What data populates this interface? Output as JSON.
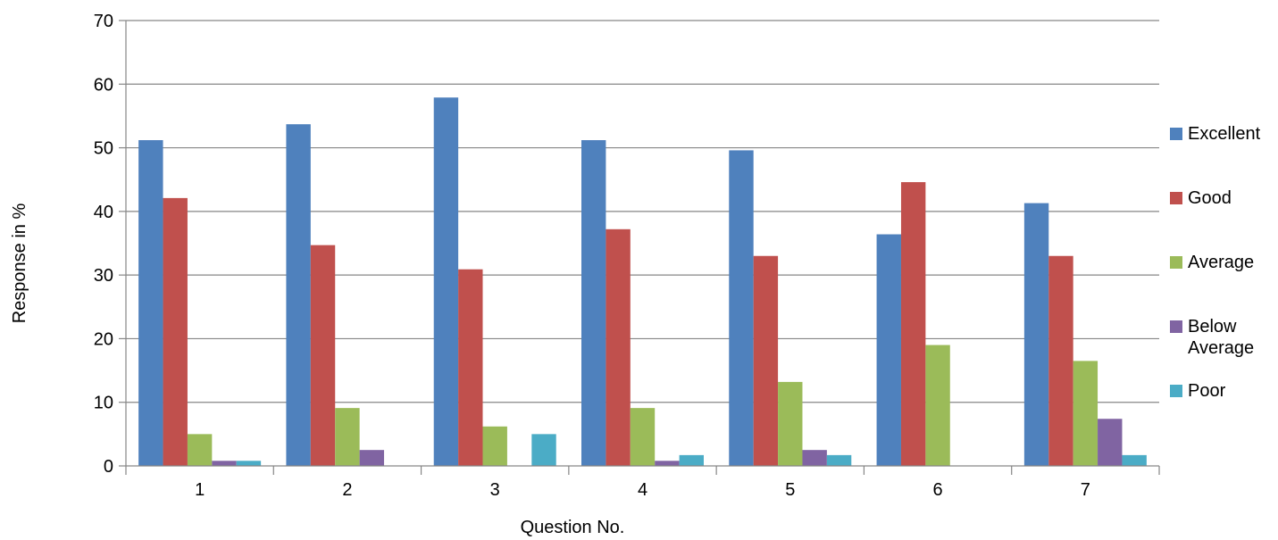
{
  "chart_data": {
    "type": "bar",
    "title": "",
    "xlabel": "Question No.",
    "ylabel": "Response in %",
    "ylim": [
      0,
      70
    ],
    "yticks": [
      0,
      10,
      20,
      30,
      40,
      50,
      60,
      70
    ],
    "grid": true,
    "legend_position": "right",
    "categories": [
      "1",
      "2",
      "3",
      "4",
      "5",
      "6",
      "7"
    ],
    "series": [
      {
        "name": "Excellent",
        "color": "#4F81BD",
        "values": [
          51.2,
          53.7,
          57.9,
          51.2,
          49.6,
          36.4,
          41.3
        ]
      },
      {
        "name": "Good",
        "color": "#C0504D",
        "values": [
          42.1,
          34.7,
          30.9,
          37.2,
          33.0,
          44.6,
          33.0
        ]
      },
      {
        "name": "Average",
        "color": "#9BBB59",
        "values": [
          5.0,
          9.1,
          6.2,
          9.1,
          13.2,
          19.0,
          16.5
        ]
      },
      {
        "name": "Below Average",
        "color": "#8064A2",
        "values": [
          0.8,
          2.5,
          0,
          0.8,
          2.5,
          0,
          7.4
        ]
      },
      {
        "name": "Poor",
        "color": "#4BACC6",
        "values": [
          0.8,
          0,
          5.0,
          1.7,
          1.7,
          0,
          1.7
        ]
      }
    ]
  }
}
